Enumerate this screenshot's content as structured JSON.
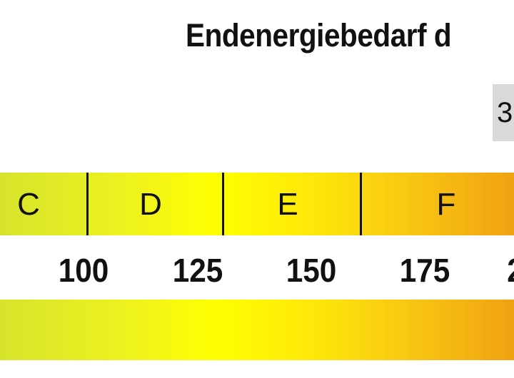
{
  "title": "Endenergiebedarf d",
  "value_box": "3",
  "classes": [
    "C",
    "D",
    "E",
    "F"
  ],
  "scale_ticks": [
    "100",
    "125",
    "150",
    "175",
    "2"
  ],
  "colors": {
    "green_yellow": "#d6e42c",
    "yellow": "#ffff00",
    "orange": "#f0a212",
    "value_box": "#d9d9d9"
  }
}
